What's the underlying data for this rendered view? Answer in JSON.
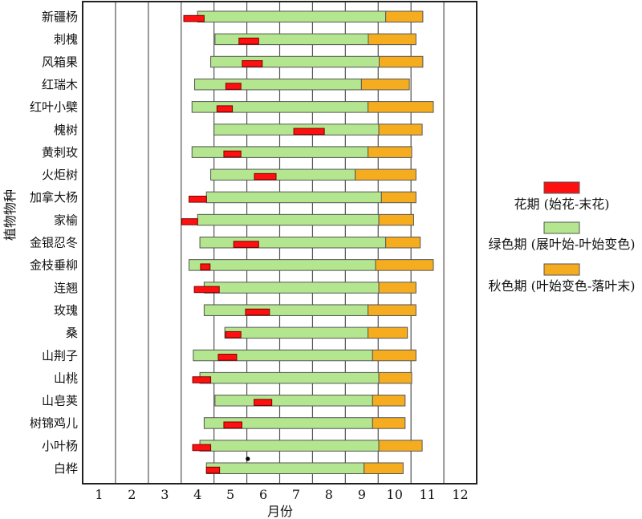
{
  "chart_data": {
    "type": "gantt",
    "xlabel": "月份",
    "ylabel": "植物物种",
    "xlim": [
      0,
      12
    ],
    "x_tick_labels": [
      "1",
      "2",
      "3",
      "4",
      "5",
      "6",
      "7",
      "8",
      "9",
      "10",
      "11",
      "12"
    ],
    "grid": "vertical",
    "legend_position": "right",
    "legend": [
      {
        "key": "flower",
        "label": "花期 (始花-末花)",
        "color": "#ff1010"
      },
      {
        "key": "green",
        "label": "绿色期 (展叶始-叶始变色)",
        "color": "#b3e68e"
      },
      {
        "key": "autumn",
        "label": "秋色期 (叶始变色-落叶末)",
        "color": "#f5ad1f"
      }
    ],
    "series": [
      {
        "name": "新疆杨",
        "green": [
          3.5,
          9.23
        ],
        "autumn": [
          9.23,
          10.36
        ],
        "flower": [
          3.08,
          3.7
        ]
      },
      {
        "name": "刺槐",
        "green": [
          4.03,
          8.7
        ],
        "autumn": [
          8.7,
          10.15
        ],
        "flower": [
          4.76,
          5.36
        ]
      },
      {
        "name": "风箱果",
        "green": [
          3.9,
          9.03
        ],
        "autumn": [
          9.03,
          10.36
        ],
        "flower": [
          4.86,
          5.47
        ]
      },
      {
        "name": "红瑞木",
        "green": [
          3.41,
          8.49
        ],
        "autumn": [
          8.49,
          9.95
        ],
        "flower": [
          4.36,
          4.82
        ]
      },
      {
        "name": "红叶小檗",
        "green": [
          3.33,
          8.69
        ],
        "autumn": [
          8.69,
          10.68
        ],
        "flower": [
          4.09,
          4.56
        ]
      },
      {
        "name": "槐树",
        "green": [
          4.0,
          9.02
        ],
        "autumn": [
          9.02,
          10.34
        ],
        "flower": [
          6.43,
          7.36
        ]
      },
      {
        "name": "黄刺玫",
        "green": [
          3.33,
          8.69
        ],
        "autumn": [
          8.69,
          10.02
        ],
        "flower": [
          4.3,
          4.82
        ]
      },
      {
        "name": "火炬树",
        "green": [
          3.9,
          8.3
        ],
        "autumn": [
          8.3,
          10.15
        ],
        "flower": [
          5.23,
          5.89
        ]
      },
      {
        "name": "加拿大杨",
        "green": [
          3.77,
          9.1
        ],
        "autumn": [
          9.1,
          10.15
        ],
        "flower": [
          3.24,
          3.77
        ]
      },
      {
        "name": "家榆",
        "green": [
          3.5,
          9.02
        ],
        "autumn": [
          9.02,
          10.08
        ],
        "flower": [
          3.02,
          3.5
        ]
      },
      {
        "name": "金银忍冬",
        "green": [
          3.57,
          9.23
        ],
        "autumn": [
          9.23,
          10.28
        ],
        "flower": [
          4.6,
          5.36
        ]
      },
      {
        "name": "金枝垂柳",
        "green": [
          3.24,
          8.92
        ],
        "autumn": [
          8.92,
          10.68
        ],
        "flower": [
          3.59,
          3.88
        ]
      },
      {
        "name": "连翘",
        "green": [
          3.7,
          9.02
        ],
        "autumn": [
          9.02,
          10.15
        ],
        "flower": [
          3.4,
          4.16
        ]
      },
      {
        "name": "玫瑰",
        "green": [
          3.7,
          8.69
        ],
        "autumn": [
          8.69,
          10.15
        ],
        "flower": [
          4.96,
          5.69
        ]
      },
      {
        "name": "桑",
        "green": [
          4.33,
          8.69
        ],
        "autumn": [
          8.69,
          9.89
        ],
        "flower": [
          4.35,
          4.82
        ]
      },
      {
        "name": "山荆子",
        "green": [
          3.37,
          8.83
        ],
        "autumn": [
          8.83,
          10.15
        ],
        "flower": [
          4.13,
          4.69
        ]
      },
      {
        "name": "山桃",
        "green": [
          3.57,
          9.02
        ],
        "autumn": [
          9.02,
          10.02
        ],
        "flower": [
          3.35,
          3.9
        ]
      },
      {
        "name": "山皂荚",
        "green": [
          4.03,
          8.83
        ],
        "autumn": [
          8.83,
          9.82
        ],
        "flower": [
          5.22,
          5.76
        ]
      },
      {
        "name": "树锦鸡儿",
        "green": [
          3.7,
          8.83
        ],
        "autumn": [
          8.83,
          9.82
        ],
        "flower": [
          4.3,
          4.85
        ]
      },
      {
        "name": "小叶杨",
        "green": [
          3.57,
          9.02
        ],
        "autumn": [
          9.02,
          10.34
        ],
        "flower": [
          3.35,
          3.9
        ]
      },
      {
        "name": "白桦",
        "green": [
          3.77,
          8.57
        ],
        "autumn": [
          8.57,
          9.76
        ],
        "flower": [
          3.77,
          4.17
        ]
      }
    ],
    "point_marker": {
      "x": 5.03,
      "between_rows": [
        "小叶杨",
        "白桦"
      ]
    }
  }
}
